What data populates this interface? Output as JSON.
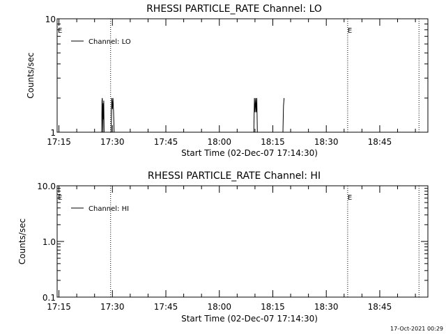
{
  "footer": {
    "timestamp": "17-Oct-2021 00:29"
  },
  "chart_data": [
    {
      "type": "line",
      "title": "RHESSI PARTICLE_RATE Channel: LO",
      "xlabel": "Start Time (02-Dec-07 17:14:30)",
      "ylabel": "Counts/sec",
      "yscale": "log",
      "ylim": [
        1,
        10
      ],
      "ytick_labels": [
        "1",
        "10"
      ],
      "ytick_values": [
        1,
        10
      ],
      "xlim": [
        "17:14:30",
        "18:58:30"
      ],
      "xtick_labels": [
        "17:15",
        "17:30",
        "17:45",
        "18:00",
        "18:15",
        "18:30",
        "18:45"
      ],
      "legend": {
        "entry": "Channel: LO",
        "placement": "top-left"
      },
      "series": [
        {
          "name": "Channel: LO",
          "x": [
            "17:27:00",
            "17:27:05",
            "17:27:10",
            "17:27:15",
            "17:27:20",
            "17:27:25",
            "17:27:30",
            "17:27:35",
            "17:27:40",
            "17:29:40",
            "17:29:50",
            "17:30:00",
            "17:30:10",
            "17:30:20",
            "17:30:30",
            "18:09:40",
            "18:09:50",
            "18:10:00",
            "18:10:10",
            "18:10:20",
            "18:10:30",
            "18:10:40",
            "18:17:50",
            "18:18:00",
            "18:18:10"
          ],
          "y": [
            1,
            1.9,
            2,
            1.4,
            1,
            1.8,
            1.3,
            1.9,
            1,
            1,
            2,
            1.6,
            2,
            1.5,
            1,
            1,
            2,
            1.5,
            2,
            1.5,
            2,
            1,
            1,
            1.7,
            2
          ]
        }
      ],
      "vlines_dotted": [
        "17:29:30",
        "18:36:00",
        "18:56:00"
      ],
      "flags": [
        {
          "label": "E",
          "x": "17:14:30"
        },
        {
          "label": "E",
          "x": "18:36:00"
        }
      ]
    },
    {
      "type": "line",
      "title": "RHESSI PARTICLE_RATE Channel: HI",
      "xlabel": "Start Time (02-Dec-07 17:14:30)",
      "ylabel": "Counts/sec",
      "yscale": "log",
      "ylim": [
        0.1,
        10
      ],
      "ytick_labels": [
        "0.1",
        "1.0",
        "10.0"
      ],
      "ytick_values": [
        0.1,
        1,
        10
      ],
      "xlim": [
        "17:14:30",
        "18:58:30"
      ],
      "xtick_labels": [
        "17:15",
        "17:30",
        "17:45",
        "18:00",
        "18:15",
        "18:30",
        "18:45"
      ],
      "legend": {
        "entry": "Channel: HI",
        "placement": "top-left"
      },
      "series": [
        {
          "name": "Channel: HI",
          "x": [],
          "y": []
        }
      ],
      "vlines_dotted": [
        "17:29:30",
        "18:36:00",
        "18:56:00"
      ],
      "flags": [
        {
          "label": "E",
          "x": "17:14:30"
        },
        {
          "label": "E",
          "x": "18:36:00"
        }
      ]
    }
  ]
}
